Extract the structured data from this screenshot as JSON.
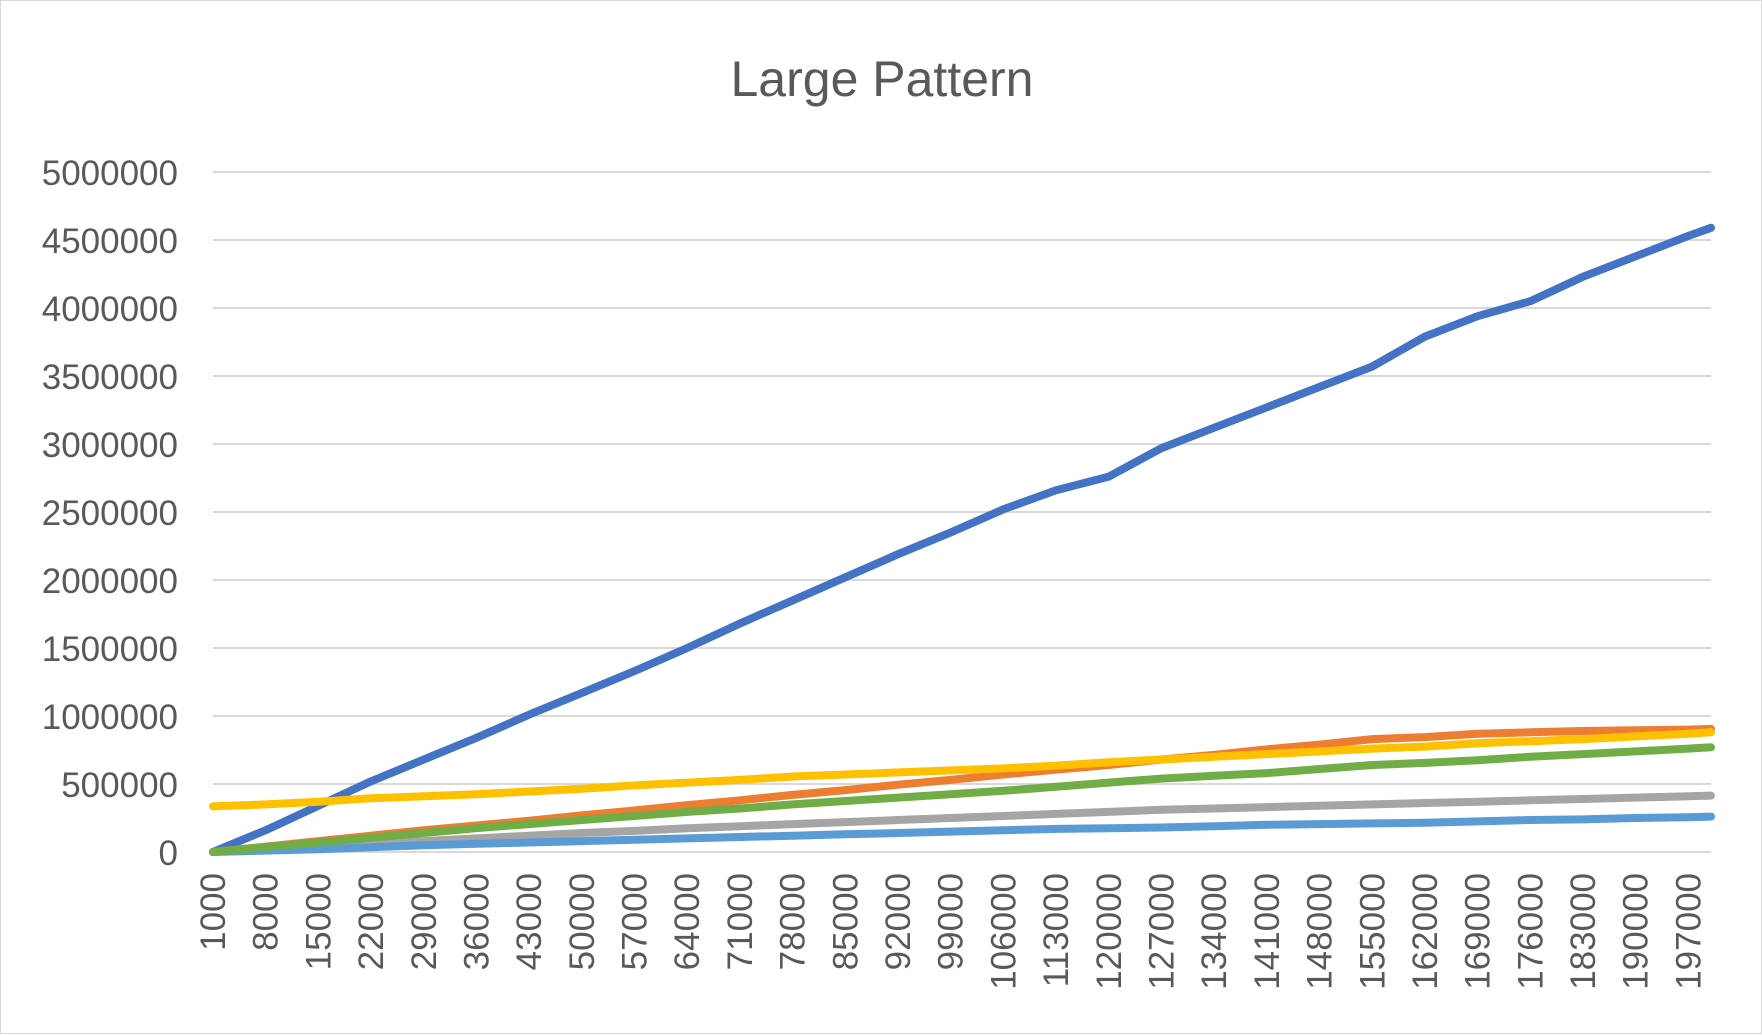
{
  "chart_data": {
    "type": "line",
    "title": "Large Pattern",
    "xlabel": "",
    "ylabel": "",
    "ylim": [
      0,
      5000000
    ],
    "y_ticks": [
      "0",
      "500000",
      "1000000",
      "1500000",
      "2000000",
      "2500000",
      "3000000",
      "3500000",
      "4000000",
      "4500000",
      "5000000"
    ],
    "x_ticks": [
      "1000",
      "8000",
      "15000",
      "22000",
      "29000",
      "36000",
      "43000",
      "50000",
      "57000",
      "64000",
      "71000",
      "78000",
      "85000",
      "92000",
      "99000",
      "106000",
      "113000",
      "120000",
      "127000",
      "134000",
      "141000",
      "148000",
      "155000",
      "162000",
      "169000",
      "176000",
      "183000",
      "190000",
      "197000"
    ],
    "x": [
      1000,
      8000,
      15000,
      22000,
      29000,
      36000,
      43000,
      50000,
      57000,
      64000,
      71000,
      78000,
      85000,
      92000,
      99000,
      106000,
      113000,
      120000,
      127000,
      134000,
      141000,
      148000,
      155000,
      162000,
      169000,
      176000,
      183000,
      190000,
      197000,
      200000
    ],
    "legend": "none",
    "grid": true,
    "series": [
      {
        "color": "#4472c4",
        "values": [
          0,
          160000,
          340000,
          520000,
          680000,
          840000,
          1010000,
          1170000,
          1330000,
          1500000,
          1680000,
          1850000,
          2020000,
          2190000,
          2350000,
          2520000,
          2660000,
          2760000,
          2970000,
          3120000,
          3270000,
          3420000,
          3570000,
          3790000,
          3940000,
          4050000,
          4230000,
          4380000,
          4530000,
          4590000
        ]
      },
      {
        "color": "#ed7d31",
        "values": [
          0,
          40000,
          80000,
          120000,
          160000,
          195000,
          230000,
          270000,
          305000,
          345000,
          380000,
          420000,
          455000,
          495000,
          530000,
          570000,
          605000,
          640000,
          680000,
          715000,
          755000,
          790000,
          830000,
          845000,
          870000,
          880000,
          890000,
          895000,
          900000,
          905000
        ]
      },
      {
        "color": "#a5a5a5",
        "values": [
          0,
          20000,
          40000,
          60000,
          80000,
          100000,
          120000,
          140000,
          155000,
          175000,
          190000,
          205000,
          220000,
          235000,
          250000,
          265000,
          280000,
          295000,
          310000,
          320000,
          330000,
          340000,
          350000,
          360000,
          370000,
          380000,
          390000,
          400000,
          410000,
          415000
        ]
      },
      {
        "color": "#ffc000",
        "values": [
          335000,
          350000,
          370000,
          395000,
          410000,
          425000,
          445000,
          465000,
          490000,
          510000,
          530000,
          555000,
          570000,
          585000,
          600000,
          615000,
          635000,
          660000,
          680000,
          700000,
          720000,
          740000,
          760000,
          775000,
          800000,
          815000,
          830000,
          850000,
          870000,
          880000
        ]
      },
      {
        "color": "#5b9bd5",
        "values": [
          0,
          10000,
          20000,
          35000,
          50000,
          60000,
          70000,
          80000,
          90000,
          100000,
          110000,
          120000,
          130000,
          140000,
          150000,
          160000,
          170000,
          175000,
          180000,
          190000,
          200000,
          205000,
          210000,
          215000,
          225000,
          235000,
          240000,
          250000,
          255000,
          260000
        ]
      },
      {
        "color": "#70ad47",
        "values": [
          0,
          35000,
          70000,
          105000,
          140000,
          175000,
          205000,
          235000,
          265000,
          295000,
          320000,
          350000,
          375000,
          400000,
          425000,
          450000,
          480000,
          510000,
          540000,
          560000,
          580000,
          610000,
          640000,
          655000,
          675000,
          700000,
          720000,
          740000,
          760000,
          770000
        ]
      }
    ]
  }
}
